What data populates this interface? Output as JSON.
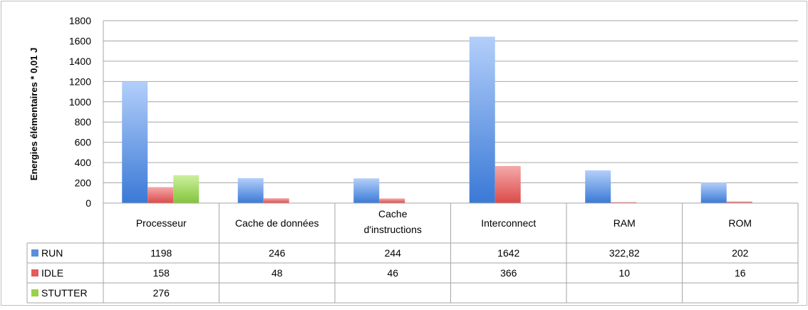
{
  "chart_data": {
    "type": "bar",
    "title": "",
    "xlabel": "",
    "ylabel": "Energies élémentaires * 0,01 J",
    "ylim": [
      0,
      1800
    ],
    "yticks": [
      "0",
      "200",
      "400",
      "600",
      "800",
      "1000",
      "1200",
      "1400",
      "1600",
      "1800"
    ],
    "grid": true,
    "legend": "data-table-left",
    "categories": [
      "Processeur",
      "Cache de données",
      "Cache d'instructions",
      "Interconnect",
      "RAM",
      "ROM"
    ],
    "series": [
      {
        "name": "RUN",
        "color": "#5b8fd9",
        "values": [
          1198,
          246,
          244,
          1642,
          322.82,
          202
        ],
        "labels": [
          "1198",
          "246",
          "244",
          "1642",
          "322,82",
          "202"
        ]
      },
      {
        "name": "IDLE",
        "color": "#e55a5a",
        "values": [
          158,
          48,
          46,
          366,
          10,
          16
        ],
        "labels": [
          "158",
          "48",
          "46",
          "366",
          "10",
          "16"
        ]
      },
      {
        "name": "STUTTER",
        "color": "#99d14a",
        "values": [
          276,
          null,
          null,
          null,
          null,
          null
        ],
        "labels": [
          "276",
          "",
          "",
          "",
          "",
          ""
        ]
      }
    ]
  }
}
